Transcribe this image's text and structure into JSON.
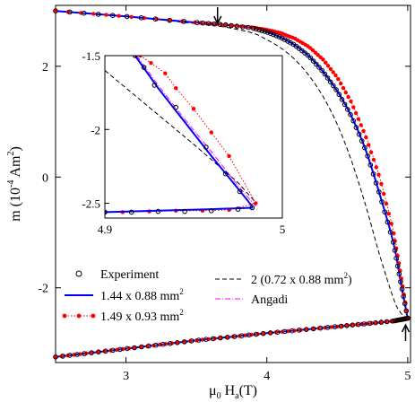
{
  "chart_data": [
    {
      "type": "scatter",
      "panel": "main",
      "xlabel": "μ0 Ha(T)",
      "ylabel": "m (10-4 Am2)",
      "xlim": [
        2.5,
        5.02
      ],
      "ylim": [
        -3.35,
        3.1
      ],
      "x_ticks": [
        3,
        4,
        5
      ],
      "y_ticks": [
        -2,
        0,
        2
      ],
      "x_tick_labels": [
        "3",
        "4",
        "5"
      ],
      "y_tick_labels": [
        "-2",
        "0",
        "2"
      ],
      "legend_position": "bottom",
      "series": [
        {
          "name": "Experiment",
          "style": "open circles",
          "color": "#000000",
          "branches": [
            {
              "x": [
                2.5,
                3.0,
                3.5,
                3.7,
                3.9,
                4.0,
                4.1,
                4.2,
                4.3,
                4.4,
                4.5,
                4.6,
                4.7,
                4.8,
                4.9,
                4.95,
                5.0
              ],
              "y": [
                3.0,
                2.9,
                2.79,
                2.75,
                2.69,
                2.62,
                2.52,
                2.38,
                2.18,
                1.9,
                1.55,
                1.1,
                0.5,
                -0.3,
                -1.2,
                -1.9,
                -2.55
              ]
            },
            {
              "x": [
                2.5,
                3.0,
                3.5,
                4.0,
                4.5,
                4.9,
                5.0
              ],
              "y": [
                -3.25,
                -3.1,
                -2.95,
                -2.82,
                -2.7,
                -2.6,
                -2.55
              ]
            }
          ]
        },
        {
          "name": "1.44 x 0.88 mm2",
          "style": "solid line",
          "color": "#0000ff",
          "branches": [
            {
              "x": [
                2.5,
                3.0,
                3.5,
                3.7,
                3.9,
                4.0,
                4.1,
                4.2,
                4.3,
                4.4,
                4.5,
                4.6,
                4.7,
                4.8,
                4.9,
                4.95,
                5.0
              ],
              "y": [
                3.0,
                2.9,
                2.79,
                2.75,
                2.69,
                2.62,
                2.52,
                2.38,
                2.18,
                1.9,
                1.55,
                1.1,
                0.5,
                -0.3,
                -1.2,
                -1.9,
                -2.55
              ]
            },
            {
              "x": [
                2.5,
                3.0,
                3.5,
                4.0,
                4.5,
                4.9,
                5.0
              ],
              "y": [
                -3.25,
                -3.1,
                -2.95,
                -2.82,
                -2.7,
                -2.6,
                -2.55
              ]
            }
          ]
        },
        {
          "name": "1.49 x 0.93 mm2",
          "style": "dotted line with filled circles",
          "color": "#ff0000",
          "branches": [
            {
              "x": [
                2.5,
                3.0,
                3.5,
                3.7,
                3.9,
                4.0,
                4.1,
                4.2,
                4.3,
                4.4,
                4.5,
                4.6,
                4.7,
                4.8,
                4.9,
                4.95,
                5.0
              ],
              "y": [
                3.0,
                2.9,
                2.79,
                2.75,
                2.7,
                2.66,
                2.6,
                2.5,
                2.35,
                2.12,
                1.8,
                1.35,
                0.75,
                0.0,
                -1.0,
                -1.75,
                -2.55
              ]
            },
            {
              "x": [
                2.5,
                3.0,
                3.5,
                4.0,
                4.5,
                4.9,
                5.0
              ],
              "y": [
                -3.25,
                -3.1,
                -2.95,
                -2.82,
                -2.7,
                -2.6,
                -2.55
              ]
            }
          ]
        },
        {
          "name": "2 (0.72 x 0.88 mm2)",
          "style": "dashed line",
          "color": "#000000",
          "branches": [
            {
              "x": [
                2.5,
                3.0,
                3.5,
                3.7,
                3.9,
                4.0,
                4.1,
                4.2,
                4.3,
                4.4,
                4.5,
                4.6,
                4.7,
                4.8,
                4.9,
                4.95,
                5.0
              ],
              "y": [
                3.0,
                2.9,
                2.77,
                2.71,
                2.6,
                2.48,
                2.33,
                2.12,
                1.83,
                1.45,
                0.95,
                0.3,
                -0.5,
                -1.4,
                -2.2,
                -2.45,
                -2.55
              ]
            }
          ]
        },
        {
          "name": "Angadi",
          "style": "dash-dot line",
          "color": "#ff00ff",
          "branches": [
            {
              "x": [
                2.5,
                3.0,
                3.5,
                3.7,
                3.9,
                4.0,
                4.1,
                4.2,
                4.3,
                4.4,
                4.5,
                4.6,
                4.7,
                4.8,
                4.9,
                4.95,
                5.0
              ],
              "y": [
                3.0,
                2.9,
                2.79,
                2.75,
                2.69,
                2.62,
                2.52,
                2.38,
                2.18,
                1.9,
                1.55,
                1.1,
                0.5,
                -0.3,
                -1.2,
                -1.9,
                -2.55
              ]
            }
          ]
        }
      ],
      "annotations": [
        {
          "type": "arrow-down",
          "x": 3.65,
          "y": 3.1
        },
        {
          "type": "arrow-up",
          "x": 4.985,
          "y": -3.35
        }
      ]
    },
    {
      "type": "scatter",
      "panel": "inset",
      "xlim": [
        4.9,
        5.0
      ],
      "ylim": [
        -2.6,
        -1.5
      ],
      "x_ticks": [
        4.9,
        5.0
      ],
      "y_ticks": [
        -2.5,
        -2.0,
        -1.5
      ],
      "x_tick_labels": [
        "4.9",
        "5"
      ],
      "y_tick_labels": [
        "-2.5",
        "-2",
        "-1.5"
      ],
      "series": [
        {
          "name": "Experiment",
          "color": "#000000",
          "x": [
            4.917,
            4.922,
            4.928,
            4.94,
            4.957,
            4.968,
            4.976,
            4.983,
            4.9,
            4.915,
            4.93,
            4.945,
            4.96,
            4.975
          ],
          "y": [
            -1.5,
            -1.58,
            -1.7,
            -1.85,
            -2.12,
            -2.3,
            -2.42,
            -2.53,
            -2.56,
            -2.56,
            -2.555,
            -2.555,
            -2.55,
            -2.54
          ]
        },
        {
          "name": "1.44 x 0.88 mm2",
          "color": "#0000ff",
          "x": [
            4.917,
            4.93,
            4.945,
            4.96,
            4.975,
            4.983,
            4.983,
            4.96,
            4.93,
            4.9
          ],
          "y": [
            -1.5,
            -1.72,
            -1.95,
            -2.18,
            -2.4,
            -2.52,
            -2.53,
            -2.54,
            -2.55,
            -2.56
          ]
        },
        {
          "name": "1.49 x 0.93 mm2",
          "color": "#ff0000",
          "x": [
            4.92,
            4.926,
            4.934,
            4.94,
            4.95,
            4.96,
            4.97,
            4.985,
            4.9,
            4.91,
            4.925,
            4.94,
            4.955,
            4.97
          ],
          "y": [
            -1.5,
            -1.55,
            -1.62,
            -1.72,
            -1.86,
            -2.02,
            -2.18,
            -2.5,
            -2.56,
            -2.56,
            -2.555,
            -2.55,
            -2.55,
            -2.545
          ]
        },
        {
          "name": "2 (0.72 x 0.88 mm2)",
          "color": "#000000",
          "x": [
            4.9,
            4.925,
            4.95,
            4.975,
            4.984
          ],
          "y": [
            -1.6,
            -1.85,
            -2.1,
            -2.36,
            -2.48
          ]
        },
        {
          "name": "Angadi",
          "color": "#ff00ff",
          "x": [
            4.918,
            4.93,
            4.945,
            4.96,
            4.975,
            4.985
          ],
          "y": [
            -1.5,
            -1.7,
            -1.93,
            -2.15,
            -2.38,
            -2.52
          ]
        }
      ]
    }
  ]
}
